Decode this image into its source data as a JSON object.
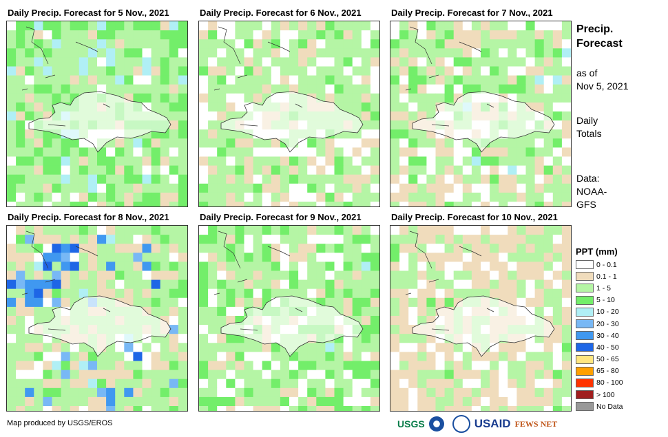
{
  "panels": [
    {
      "title": "Daily Precip. Forecast for 5 Nov., 2021"
    },
    {
      "title": "Daily Precip. Forecast for 6 Nov., 2021"
    },
    {
      "title": "Daily Precip. Forecast for 7 Nov., 2021"
    },
    {
      "title": "Daily Precip. Forecast for 8 Nov., 2021"
    },
    {
      "title": "Daily Precip. Forecast for 9 Nov., 2021"
    },
    {
      "title": "Daily Precip. Forecast for 10 Nov., 2021"
    }
  ],
  "side": {
    "title1": "Precip.",
    "title2": "Forecast",
    "asof1": "as of",
    "asof2": "Nov 5, 2021",
    "daily1": "Daily",
    "daily2": "Totals",
    "data1": "Data:",
    "data2": "NOAA-",
    "data3": "GFS"
  },
  "legend": {
    "title": "PPT (mm)",
    "items": [
      {
        "label": "0 - 0.1",
        "color": "#ffffff"
      },
      {
        "label": "0.1 - 1",
        "color": "#f0dcbc"
      },
      {
        "label": "1 - 5",
        "color": "#b5f5a5"
      },
      {
        "label": "5 - 10",
        "color": "#73ee6a"
      },
      {
        "label": "10 - 20",
        "color": "#b0eff5"
      },
      {
        "label": "20 - 30",
        "color": "#78b8f5"
      },
      {
        "label": "30 - 40",
        "color": "#4098f0"
      },
      {
        "label": "40 - 50",
        "color": "#1e66e6"
      },
      {
        "label": "50 - 65",
        "color": "#ffe680"
      },
      {
        "label": "65 - 80",
        "color": "#ffa000"
      },
      {
        "label": "80 - 100",
        "color": "#ff3300"
      },
      {
        "label": "> 100",
        "color": "#a01e1e"
      },
      {
        "label": "No Data",
        "color": "#999999"
      }
    ]
  },
  "credit": "Map produced by USGS/EROS",
  "logos": [
    "USGS",
    "NOAA",
    "USAID",
    "FEWS NET"
  ]
}
